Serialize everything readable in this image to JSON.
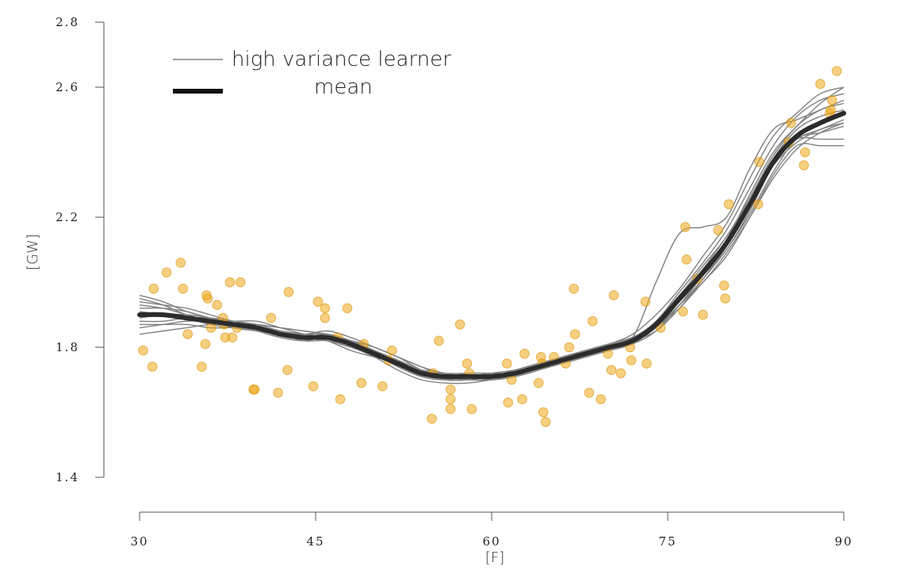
{
  "chart_data": {
    "type": "line",
    "xlabel": "[F]",
    "ylabel": "[GW]",
    "xlim": [
      30,
      90
    ],
    "ylim": [
      1.4,
      2.8
    ],
    "xticks": [
      30,
      45,
      60,
      75,
      90
    ],
    "xtick_labels": [
      "30",
      "45",
      "60",
      "75",
      "90"
    ],
    "yticks": [
      1.4,
      1.8,
      2.2,
      2.6,
      2.8
    ],
    "ytick_labels": [
      "1.4",
      "1.8",
      "2.2",
      "2.6",
      "2.8"
    ],
    "legend": {
      "placement": "top-left",
      "entries": [
        {
          "label": "high variance learner",
          "style": "thin-gray-line"
        },
        {
          "label": "mean",
          "style": "thick-black-line"
        }
      ]
    },
    "colors": {
      "learners": "#808080",
      "mean": "#2b2b2b",
      "points": "#f0a818",
      "point_edge": "#d48f00",
      "axis": "#555555"
    },
    "scatter": {
      "x": [
        30.3,
        31.1,
        31.2,
        32.3,
        33.5,
        33.7,
        34.1,
        35.3,
        35.6,
        35.8,
        35.7,
        36.1,
        36.6,
        37.1,
        37.2,
        37.3,
        37.7,
        37.9,
        38.3,
        38.6,
        39.7,
        39.8,
        41.2,
        41.8,
        42.6,
        42.7,
        44.8,
        45.2,
        45.8,
        45.8,
        46.9,
        47.1,
        47.7,
        48.9,
        49.1,
        50.7,
        51.2,
        51.5,
        54.9,
        55.0,
        55.5,
        56.5,
        56.5,
        56.5,
        57.3,
        57.9,
        58.1,
        58.3,
        61.3,
        61.4,
        61.7,
        62.6,
        62.8,
        64.0,
        64.2,
        64.3,
        64.4,
        64.6,
        65.3,
        66.3,
        66.6,
        67.0,
        67.1,
        68.3,
        68.6,
        69.3,
        69.9,
        70.2,
        70.4,
        71.0,
        71.8,
        71.9,
        73.1,
        73.2,
        74.4,
        76.3,
        76.5,
        76.6,
        77.5,
        78.0,
        79.3,
        79.8,
        79.9,
        80.2,
        82.7,
        82.8,
        85.3,
        85.5,
        86.7,
        86.6,
        88.0,
        88.8,
        88.9,
        89.0,
        89.4
      ],
      "y": [
        1.79,
        1.74,
        1.98,
        2.03,
        2.06,
        1.98,
        1.84,
        1.74,
        1.81,
        1.95,
        1.96,
        1.86,
        1.93,
        1.89,
        1.87,
        1.83,
        2.0,
        1.83,
        1.86,
        2.0,
        1.67,
        1.67,
        1.89,
        1.66,
        1.73,
        1.97,
        1.68,
        1.94,
        1.92,
        1.89,
        1.83,
        1.64,
        1.92,
        1.69,
        1.81,
        1.68,
        1.76,
        1.79,
        1.58,
        1.72,
        1.82,
        1.61,
        1.64,
        1.67,
        1.87,
        1.75,
        1.72,
        1.61,
        1.75,
        1.63,
        1.7,
        1.64,
        1.78,
        1.69,
        1.77,
        1.75,
        1.6,
        1.57,
        1.77,
        1.75,
        1.8,
        1.98,
        1.84,
        1.66,
        1.88,
        1.64,
        1.78,
        1.73,
        1.96,
        1.72,
        1.8,
        1.76,
        1.94,
        1.75,
        1.86,
        1.91,
        2.17,
        2.07,
        2.01,
        1.9,
        2.16,
        1.99,
        1.95,
        2.24,
        2.24,
        2.37,
        2.43,
        2.49,
        2.4,
        2.36,
        2.61,
        2.52,
        2.53,
        2.56,
        2.65
      ]
    },
    "mean": {
      "x": [
        30,
        32,
        34,
        36,
        38,
        40,
        42,
        44,
        46,
        48,
        50,
        52,
        54,
        56,
        58,
        60,
        62,
        64,
        66,
        68,
        70,
        72,
        74,
        76,
        78,
        80,
        82,
        84,
        86,
        88,
        90
      ],
      "y": [
        1.9,
        1.9,
        1.89,
        1.88,
        1.87,
        1.86,
        1.84,
        1.83,
        1.83,
        1.81,
        1.78,
        1.75,
        1.72,
        1.71,
        1.71,
        1.71,
        1.72,
        1.74,
        1.76,
        1.78,
        1.8,
        1.82,
        1.87,
        1.95,
        2.03,
        2.12,
        2.24,
        2.37,
        2.45,
        2.49,
        2.52
      ]
    },
    "learners": [
      {
        "y": [
          1.94,
          1.93,
          1.92,
          1.9,
          1.88,
          1.87,
          1.86,
          1.85,
          1.84,
          1.82,
          1.79,
          1.76,
          1.73,
          1.71,
          1.7,
          1.7,
          1.71,
          1.73,
          1.76,
          1.78,
          1.8,
          1.82,
          1.88,
          1.96,
          2.05,
          2.14,
          2.26,
          2.39,
          2.48,
          2.53,
          2.55
        ]
      },
      {
        "y": [
          1.87,
          1.87,
          1.87,
          1.86,
          1.86,
          1.85,
          1.84,
          1.83,
          1.82,
          1.8,
          1.78,
          1.74,
          1.71,
          1.7,
          1.7,
          1.71,
          1.72,
          1.74,
          1.75,
          1.77,
          1.79,
          1.81,
          1.85,
          1.93,
          2.02,
          2.1,
          2.22,
          2.36,
          2.44,
          2.47,
          2.5
        ]
      },
      {
        "y": [
          1.96,
          1.94,
          1.91,
          1.89,
          1.87,
          1.86,
          1.85,
          1.84,
          1.85,
          1.83,
          1.8,
          1.77,
          1.73,
          1.71,
          1.71,
          1.72,
          1.73,
          1.75,
          1.76,
          1.78,
          1.8,
          1.83,
          2.0,
          2.15,
          2.17,
          2.2,
          2.35,
          2.47,
          2.5,
          2.53,
          2.56
        ]
      },
      {
        "y": [
          1.84,
          1.85,
          1.86,
          1.87,
          1.87,
          1.86,
          1.84,
          1.82,
          1.82,
          1.8,
          1.77,
          1.73,
          1.7,
          1.69,
          1.69,
          1.7,
          1.71,
          1.73,
          1.75,
          1.77,
          1.79,
          1.81,
          1.86,
          1.92,
          2.0,
          2.08,
          2.2,
          2.33,
          2.42,
          2.42,
          2.42
        ]
      },
      {
        "y": [
          1.92,
          1.92,
          1.91,
          1.89,
          1.88,
          1.87,
          1.85,
          1.84,
          1.83,
          1.82,
          1.8,
          1.77,
          1.74,
          1.72,
          1.71,
          1.7,
          1.71,
          1.73,
          1.76,
          1.79,
          1.81,
          1.83,
          1.87,
          1.94,
          2.02,
          2.13,
          2.27,
          2.4,
          2.48,
          2.55,
          2.6
        ]
      },
      {
        "y": [
          1.89,
          1.9,
          1.9,
          1.89,
          1.87,
          1.85,
          1.83,
          1.82,
          1.83,
          1.81,
          1.78,
          1.75,
          1.72,
          1.71,
          1.72,
          1.72,
          1.72,
          1.74,
          1.77,
          1.79,
          1.81,
          1.83,
          1.86,
          1.93,
          2.01,
          2.1,
          2.21,
          2.34,
          2.44,
          2.46,
          2.48
        ]
      },
      {
        "y": [
          1.91,
          1.9,
          1.89,
          1.88,
          1.88,
          1.88,
          1.86,
          1.84,
          1.82,
          1.79,
          1.77,
          1.75,
          1.73,
          1.72,
          1.71,
          1.71,
          1.72,
          1.74,
          1.76,
          1.78,
          1.8,
          1.82,
          1.87,
          1.95,
          2.04,
          2.14,
          2.25,
          2.36,
          2.43,
          2.47,
          2.49
        ]
      },
      {
        "y": [
          1.88,
          1.88,
          1.89,
          1.89,
          1.88,
          1.86,
          1.84,
          1.83,
          1.84,
          1.82,
          1.79,
          1.75,
          1.72,
          1.7,
          1.7,
          1.71,
          1.73,
          1.75,
          1.77,
          1.79,
          1.81,
          1.83,
          1.88,
          1.97,
          2.06,
          2.16,
          2.29,
          2.42,
          2.51,
          2.56,
          2.58
        ]
      },
      {
        "y": [
          1.93,
          1.92,
          1.9,
          1.88,
          1.86,
          1.85,
          1.84,
          1.84,
          1.84,
          1.82,
          1.79,
          1.76,
          1.72,
          1.7,
          1.7,
          1.71,
          1.72,
          1.74,
          1.76,
          1.78,
          1.8,
          1.82,
          1.86,
          1.93,
          2.0,
          2.09,
          2.2,
          2.32,
          2.41,
          2.46,
          2.49
        ]
      },
      {
        "y": [
          1.86,
          1.87,
          1.88,
          1.88,
          1.87,
          1.86,
          1.85,
          1.84,
          1.83,
          1.81,
          1.78,
          1.74,
          1.71,
          1.7,
          1.71,
          1.72,
          1.73,
          1.75,
          1.77,
          1.79,
          1.81,
          1.84,
          1.9,
          1.98,
          2.08,
          2.18,
          2.32,
          2.45,
          2.52,
          2.58,
          2.6
        ]
      },
      {
        "y": [
          1.9,
          1.9,
          1.89,
          1.87,
          1.86,
          1.86,
          1.85,
          1.83,
          1.82,
          1.81,
          1.78,
          1.76,
          1.73,
          1.72,
          1.72,
          1.72,
          1.72,
          1.74,
          1.76,
          1.78,
          1.8,
          1.82,
          1.86,
          1.94,
          2.03,
          2.11,
          2.23,
          2.37,
          2.44,
          2.44,
          2.44
        ]
      },
      {
        "y": [
          1.95,
          1.93,
          1.9,
          1.88,
          1.87,
          1.87,
          1.86,
          1.85,
          1.84,
          1.82,
          1.8,
          1.77,
          1.74,
          1.71,
          1.7,
          1.71,
          1.72,
          1.74,
          1.76,
          1.78,
          1.8,
          1.82,
          1.85,
          1.92,
          2.01,
          2.11,
          2.24,
          2.38,
          2.47,
          2.51,
          2.53
        ]
      }
    ]
  }
}
